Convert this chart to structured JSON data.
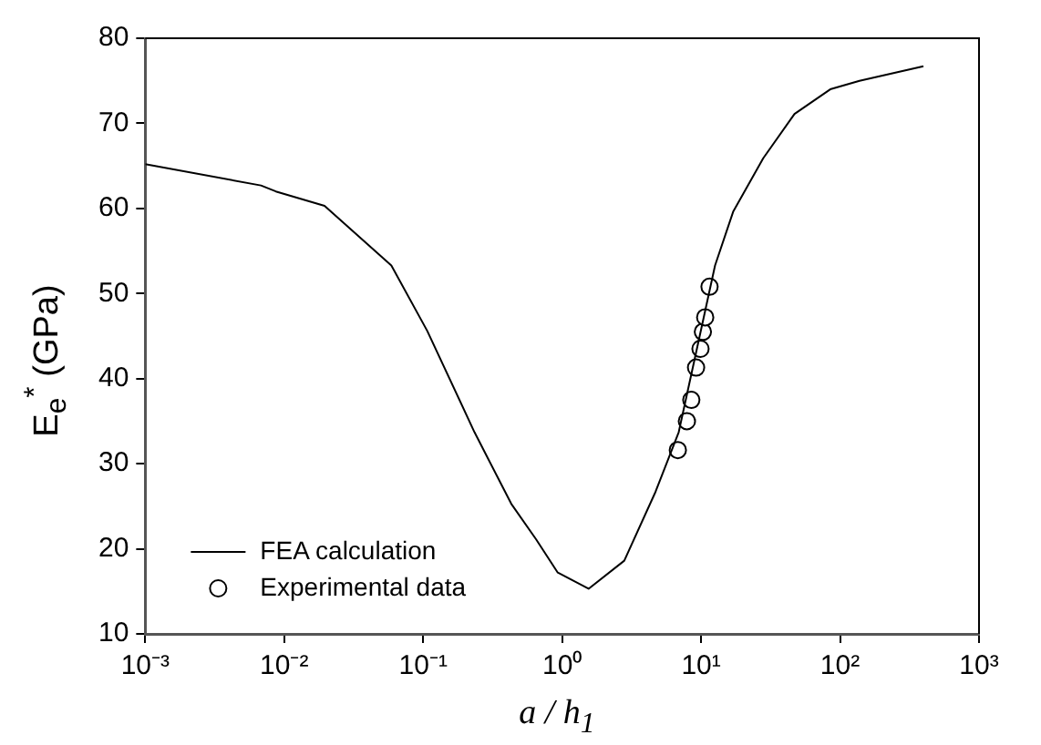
{
  "chart_data": {
    "type": "line",
    "xlabel": "a / h$_{1}$",
    "ylabel": "E$_{e}$$^{*}$ (GPa)",
    "log": "x",
    "xlim": [
      0.001,
      1000
    ],
    "ylim": [
      10,
      80
    ],
    "xticks": [
      {
        "value": 0.001,
        "label": "10⁻³"
      },
      {
        "value": 0.01,
        "label": "10⁻²"
      },
      {
        "value": 0.1,
        "label": "10⁻¹"
      },
      {
        "value": 1,
        "label": "10⁰"
      },
      {
        "value": 10,
        "label": "10¹"
      },
      {
        "value": 100,
        "label": "10²"
      },
      {
        "value": 1000,
        "label": "10³"
      }
    ],
    "yticks": [
      10,
      20,
      30,
      40,
      50,
      60,
      70,
      80
    ],
    "grid": false,
    "legend": "bottom left",
    "series": [
      {
        "name": "FEA calculation",
        "color": "#000000",
        "marker": "none",
        "line_style": "solid",
        "x": [
          0.001,
          0.0068,
          0.0087,
          0.0195,
          0.059,
          0.107,
          0.234,
          0.43,
          0.65,
          0.93,
          1.55,
          2.8,
          4.7,
          6.9,
          12.6,
          17,
          28,
          47,
          85,
          138,
          398
        ],
        "values": [
          65.2,
          62.7,
          62.0,
          60.3,
          53.3,
          45.6,
          33.7,
          25.3,
          21.1,
          17.2,
          15.3,
          18.6,
          26.7,
          33.7,
          53.3,
          59.6,
          65.9,
          71.1,
          74.0,
          75.0,
          76.7
        ]
      },
      {
        "name": "Experimental data",
        "type": "scatter",
        "color": "#000000",
        "marker": "circle",
        "x": [
          6.8,
          7.9,
          8.5,
          9.2,
          9.9,
          10.3,
          10.7,
          11.5
        ],
        "values": [
          31.6,
          35.0,
          37.5,
          41.3,
          43.5,
          45.5,
          47.2,
          50.8
        ]
      }
    ]
  }
}
